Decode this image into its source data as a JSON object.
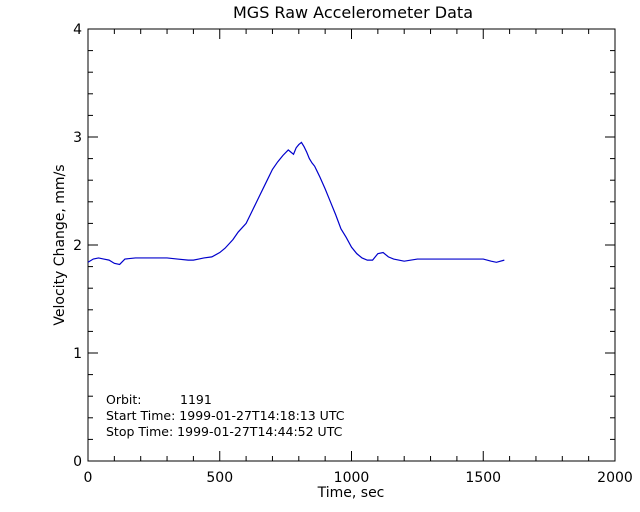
{
  "chart_data": {
    "type": "line",
    "title": "MGS Raw Accelerometer Data",
    "xlabel": "Time, sec",
    "ylabel": "Velocity Change, mm/s",
    "xlim": [
      0,
      2000
    ],
    "ylim": [
      0,
      4
    ],
    "xticks": [
      0,
      500,
      1000,
      1500,
      2000
    ],
    "yticks": [
      0,
      1,
      2,
      3,
      4
    ],
    "grid": false,
    "line_color": "#0000cc",
    "annotations": {
      "orbit_label": "Orbit:",
      "orbit_value": "1191",
      "start_time": "Start Time: 1999-01-27T14:18:13 UTC",
      "stop_time": "Stop Time: 1999-01-27T14:44:52 UTC"
    },
    "series": [
      {
        "x": [
          0,
          20,
          40,
          60,
          80,
          100,
          120,
          140,
          180,
          220,
          260,
          300,
          340,
          380,
          400,
          420,
          440,
          470,
          500,
          520,
          550,
          570,
          600,
          620,
          650,
          680,
          700,
          720,
          740,
          760,
          770,
          780,
          790,
          800,
          810,
          820,
          830,
          840,
          850,
          860,
          870,
          880,
          900,
          920,
          940,
          960,
          980,
          1000,
          1020,
          1040,
          1060,
          1080,
          1100,
          1120,
          1140,
          1160,
          1200,
          1250,
          1300,
          1350,
          1400,
          1450,
          1500,
          1530,
          1550,
          1580
        ],
        "y": [
          1.84,
          1.87,
          1.88,
          1.87,
          1.86,
          1.83,
          1.82,
          1.87,
          1.88,
          1.88,
          1.88,
          1.88,
          1.87,
          1.86,
          1.86,
          1.87,
          1.88,
          1.89,
          1.93,
          1.97,
          2.05,
          2.12,
          2.2,
          2.3,
          2.45,
          2.6,
          2.7,
          2.77,
          2.83,
          2.88,
          2.86,
          2.84,
          2.9,
          2.93,
          2.95,
          2.91,
          2.86,
          2.8,
          2.76,
          2.73,
          2.68,
          2.63,
          2.52,
          2.4,
          2.28,
          2.15,
          2.07,
          1.98,
          1.92,
          1.88,
          1.86,
          1.86,
          1.92,
          1.93,
          1.89,
          1.87,
          1.85,
          1.87,
          1.87,
          1.87,
          1.87,
          1.87,
          1.87,
          1.85,
          1.84,
          1.86
        ]
      }
    ]
  }
}
